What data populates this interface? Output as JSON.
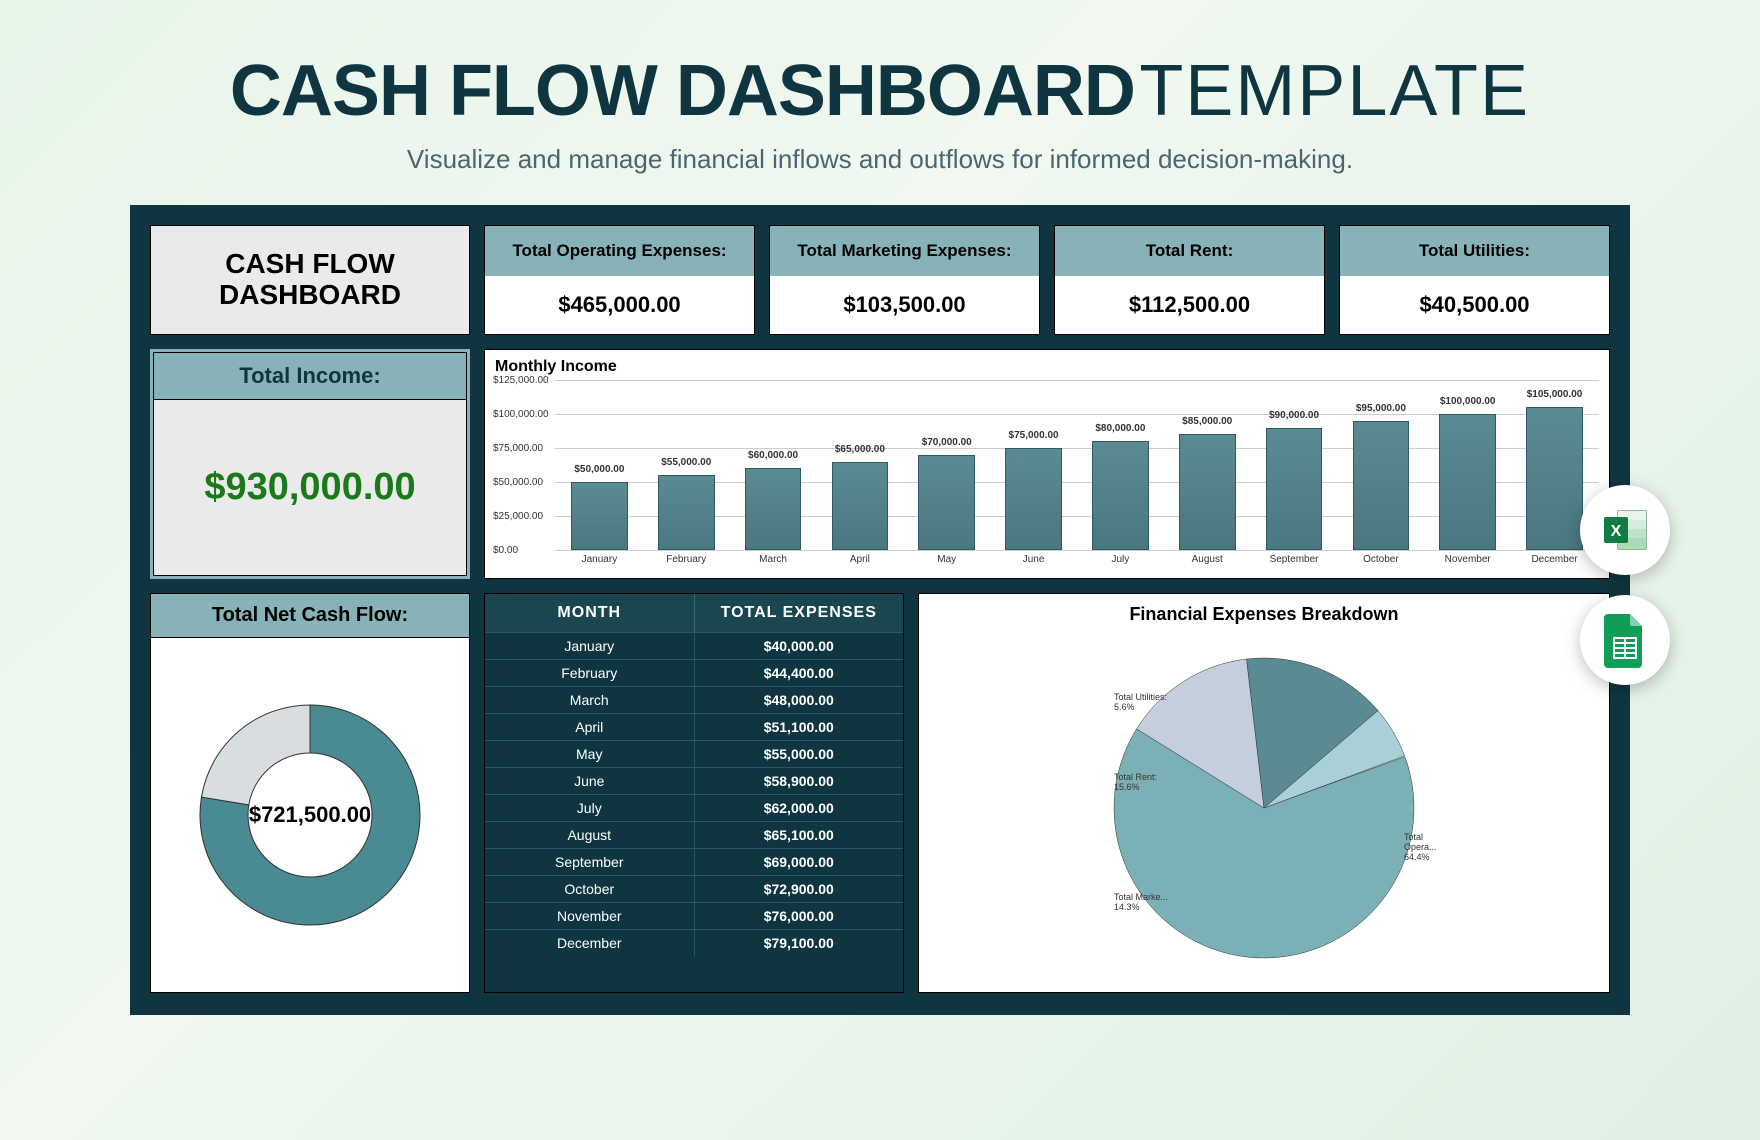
{
  "page": {
    "title_bold": "CASH FLOW DASHBOARD",
    "title_light": "TEMPLATE",
    "subtitle": "Visualize and manage financial inflows and outflows for informed decision-making."
  },
  "colors": {
    "dashboard_bg": "#0f3640",
    "teal_header": "#87b3b8",
    "light_gray": "#eaeaea",
    "income_green": "#1a7a1a",
    "bar_fill": "#5a8a92",
    "donut_primary": "#4a8a92",
    "donut_secondary": "#d8dde0"
  },
  "title_card": "CASH FLOW\nDASHBOARD",
  "kpis": [
    {
      "label": "Total Operating Expenses:",
      "value": "$465,000.00"
    },
    {
      "label": "Total Marketing Expenses:",
      "value": "$103,500.00"
    },
    {
      "label": "Total Rent:",
      "value": "$112,500.00"
    },
    {
      "label": "Total Utilities:",
      "value": "$40,500.00"
    }
  ],
  "income": {
    "label": "Total Income:",
    "value": "$930,000.00"
  },
  "bar_chart": {
    "type": "bar",
    "title": "Monthly Income",
    "ymax": 125000,
    "ytick_step": 25000,
    "ytick_labels": [
      "$0.00",
      "$25,000.00",
      "$50,000.00",
      "$75,000.00",
      "$100,000.00",
      "$125,000.00"
    ],
    "months": [
      "January",
      "February",
      "March",
      "April",
      "May",
      "June",
      "July",
      "August",
      "September",
      "October",
      "November",
      "December"
    ],
    "values": [
      50000,
      55000,
      60000,
      65000,
      70000,
      75000,
      80000,
      85000,
      90000,
      95000,
      100000,
      105000
    ],
    "value_labels": [
      "$50,000.00",
      "$55,000.00",
      "$60,000.00",
      "$65,000.00",
      "$70,000.00",
      "$75,000.00",
      "$80,000.00",
      "$85,000.00",
      "$90,000.00",
      "$95,000.00",
      "$100,000.00",
      "$105,000.00"
    ],
    "bar_color": "#4a7880",
    "grid_color": "#cccccc"
  },
  "net_cash": {
    "label": "Total Net Cash Flow:",
    "value": "$721,500.00",
    "donut_primary_pct": 77.6,
    "donut_primary_color": "#4a8a92",
    "donut_secondary_color": "#d8dde0",
    "donut_thickness": 48
  },
  "expenses_table": {
    "col1": "MONTH",
    "col2": "TOTAL EXPENSES",
    "rows": [
      [
        "January",
        "$40,000.00"
      ],
      [
        "February",
        "$44,400.00"
      ],
      [
        "March",
        "$48,000.00"
      ],
      [
        "April",
        "$51,100.00"
      ],
      [
        "May",
        "$55,000.00"
      ],
      [
        "June",
        "$58,900.00"
      ],
      [
        "July",
        "$62,000.00"
      ],
      [
        "August",
        "$65,100.00"
      ],
      [
        "September",
        "$69,000.00"
      ],
      [
        "October",
        "$72,900.00"
      ],
      [
        "November",
        "$76,000.00"
      ],
      [
        "December",
        "$79,100.00"
      ]
    ]
  },
  "pie_chart": {
    "type": "pie",
    "title": "Financial Expenses Breakdown",
    "slices": [
      {
        "label": "Total Opera...",
        "pct": 64.4,
        "color": "#7ab0b6",
        "legend": "Total Opera...\n64.4%"
      },
      {
        "label": "Total Marke...",
        "pct": 14.3,
        "color": "#c4cedd",
        "legend": "Total Marke...\n14.3%"
      },
      {
        "label": "Total Rent:",
        "pct": 15.6,
        "color": "#5a8a92",
        "legend": "Total Rent:\n15.6%"
      },
      {
        "label": "Total Utilities:",
        "pct": 5.6,
        "color": "#a8d0d6",
        "legend": "Total Utilities:\n5.6%"
      }
    ]
  },
  "app_icons": {
    "excel": "excel-icon",
    "sheets": "sheets-icon"
  }
}
